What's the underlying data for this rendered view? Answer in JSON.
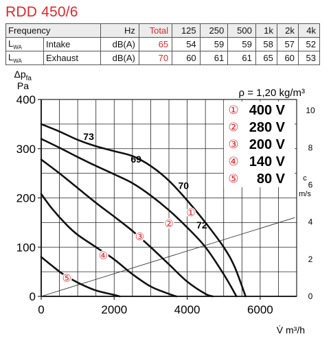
{
  "title": "RDD 450/6",
  "table": {
    "header": [
      "Frequency",
      "Hz",
      "Total",
      "125",
      "250",
      "500",
      "1k",
      "2k",
      "4k"
    ],
    "rows": [
      {
        "label": "L",
        "label_sub": "WA",
        "type": "Intake",
        "unit": "dB(A)",
        "total": "65",
        "values": [
          "54",
          "59",
          "59",
          "58",
          "57",
          "52"
        ]
      },
      {
        "label": "L",
        "label_sub": "WA",
        "type": "Exhaust",
        "unit": "dB(A)",
        "total": "70",
        "values": [
          "60",
          "61",
          "61",
          "65",
          "60",
          "53"
        ]
      }
    ]
  },
  "chart_data": {
    "type": "line",
    "ylabel_line1": "Δp",
    "ylabel_sub": "fa",
    "ylabel_line2": "Pa",
    "xlabel": "V̇ m³/h",
    "right_axis_label_line1": "c",
    "right_axis_label_line2": "m/s",
    "density_note": "ρ = 1,20 kg/m³",
    "xlim": [
      0,
      7000
    ],
    "ylim": [
      0,
      400
    ],
    "x_ticks": [
      0,
      2000,
      4000,
      6000
    ],
    "y_ticks": [
      0,
      100,
      200,
      300,
      400
    ],
    "right_ticks": [
      0,
      2,
      4,
      6,
      8,
      10
    ],
    "right_ylim": [
      0,
      10.6
    ],
    "grid": true,
    "series": [
      {
        "name": "400 V",
        "marker": "①",
        "points": [
          [
            0,
            350
          ],
          [
            500,
            335
          ],
          [
            1000,
            318
          ],
          [
            1500,
            305
          ],
          [
            2000,
            295
          ],
          [
            2500,
            285
          ],
          [
            3000,
            265
          ],
          [
            3500,
            235
          ],
          [
            4000,
            195
          ],
          [
            4500,
            150
          ],
          [
            5000,
            100
          ],
          [
            5300,
            60
          ],
          [
            5600,
            0
          ]
        ],
        "marker_at": [
          4100,
          170
        ]
      },
      {
        "name": "280 V",
        "marker": "②",
        "points": [
          [
            0,
            320
          ],
          [
            500,
            302
          ],
          [
            1000,
            283
          ],
          [
            1500,
            265
          ],
          [
            2000,
            248
          ],
          [
            2500,
            230
          ],
          [
            3000,
            205
          ],
          [
            3500,
            175
          ],
          [
            4000,
            140
          ],
          [
            4500,
            100
          ],
          [
            5000,
            45
          ],
          [
            5350,
            0
          ]
        ],
        "marker_at": [
          3500,
          148
        ]
      },
      {
        "name": "200 V",
        "marker": "③",
        "points": [
          [
            0,
            278
          ],
          [
            500,
            250
          ],
          [
            1000,
            220
          ],
          [
            1500,
            190
          ],
          [
            2000,
            162
          ],
          [
            2500,
            133
          ],
          [
            3000,
            100
          ],
          [
            3500,
            65
          ],
          [
            4000,
            30
          ],
          [
            4500,
            5
          ],
          [
            4700,
            0
          ]
        ],
        "marker_at": [
          2700,
          121
        ]
      },
      {
        "name": "140 V",
        "marker": "④",
        "points": [
          [
            0,
            208
          ],
          [
            300,
            178
          ],
          [
            700,
            145
          ],
          [
            1000,
            125
          ],
          [
            1500,
            100
          ],
          [
            2000,
            75
          ],
          [
            2500,
            45
          ],
          [
            3000,
            20
          ],
          [
            3500,
            5
          ],
          [
            3700,
            0
          ]
        ],
        "marker_at": [
          1700,
          83
        ]
      },
      {
        "name": "80 V",
        "marker": "⑤",
        "points": [
          [
            0,
            80
          ],
          [
            300,
            62
          ],
          [
            600,
            45
          ],
          [
            1000,
            28
          ],
          [
            1500,
            12
          ],
          [
            2000,
            3
          ],
          [
            2150,
            0
          ]
        ],
        "marker_at": [
          700,
          37
        ]
      }
    ],
    "system_line": [
      [
        0,
        0
      ],
      [
        6950,
        160
      ]
    ],
    "sound_labels": [
      {
        "text": "73",
        "at": [
          1300,
          318
        ]
      },
      {
        "text": "69",
        "at": [
          2600,
          272
        ]
      },
      {
        "text": "70",
        "at": [
          3900,
          218
        ]
      },
      {
        "text": "72",
        "at": [
          4400,
          138
        ]
      }
    ],
    "legend": [
      {
        "marker": "①",
        "label": "400 V"
      },
      {
        "marker": "②",
        "label": "280 V"
      },
      {
        "marker": "③",
        "label": "200 V"
      },
      {
        "marker": "④",
        "label": "140 V"
      },
      {
        "marker": "⑤",
        "label": "80 V"
      }
    ],
    "colors": {
      "curve": "#111111",
      "marker": "#e0262b",
      "grid": "#222222",
      "system": "#333333"
    }
  }
}
